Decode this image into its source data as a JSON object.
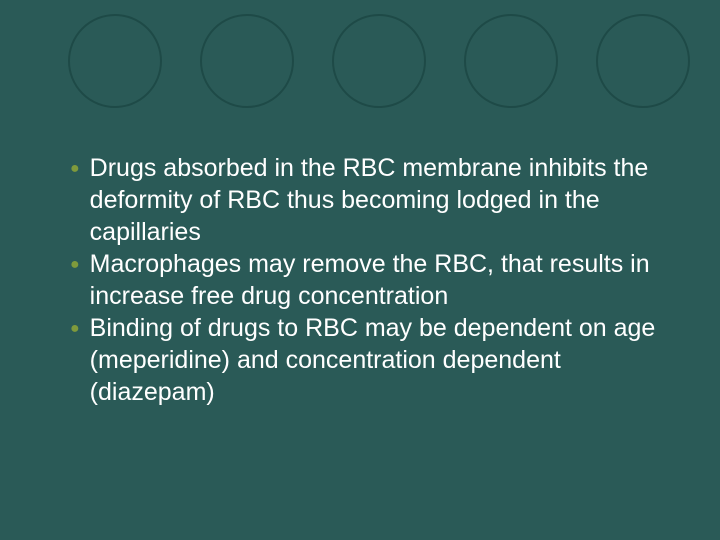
{
  "slide": {
    "background_color": "#2a5a57",
    "circle_border_color": "#1e4a47",
    "circle_count": 5,
    "bullet_color": "#7f9a3c",
    "text_color": "#ffffff",
    "font_family": "Arial",
    "bullet_fontsize": 25,
    "bullets": [
      "Drugs absorbed in the RBC membrane inhibits the deformity of RBC thus becoming lodged in the capillaries",
      "Macrophages may remove the RBC, that results in increase free drug concentration",
      "Binding of drugs to RBC may be dependent on age (meperidine) and concentration dependent (diazepam)"
    ]
  }
}
